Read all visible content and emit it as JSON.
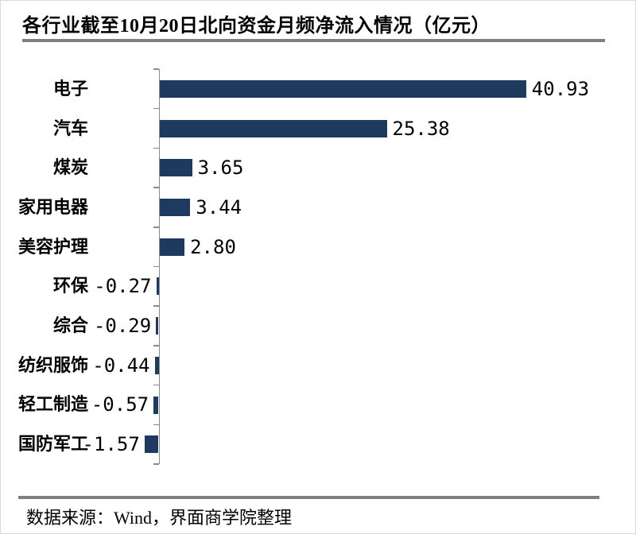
{
  "page": {
    "title": "各行业截至10月20日北向资金月频净流入情况（亿元）",
    "source_note": "数据来源：Wind，界面商学院整理"
  },
  "colors": {
    "bar": "#1f3a5f",
    "axis": "#8a8a8a",
    "rule": "#7f7f7f",
    "text": "#000000",
    "background": "#ffffff"
  },
  "chart_data": {
    "type": "bar",
    "orientation": "horizontal",
    "title": "各行业截至10月20日北向资金月频净流入情况（亿元）",
    "xlabel": "",
    "ylabel": "",
    "unit": "亿元",
    "categories": [
      "电子",
      "汽车",
      "煤炭",
      "家用电器",
      "美容护理",
      "环保",
      "综合",
      "纺织服饰",
      "轻工制造",
      "国防军工"
    ],
    "values": [
      40.93,
      25.38,
      3.65,
      3.44,
      2.8,
      -0.27,
      -0.29,
      -0.44,
      -0.57,
      -1.57
    ],
    "value_format": "0.00",
    "xlim": [
      -2,
      45
    ],
    "grid": false,
    "legend": false,
    "bar_color": "#1f3a5f",
    "label_position": "outside-end"
  }
}
